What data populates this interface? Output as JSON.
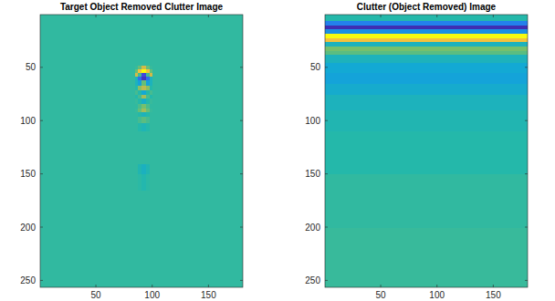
{
  "chart_data": [
    {
      "type": "heatmap",
      "title": "Target Object Removed Clutter Image",
      "xlim": [
        0.5,
        180.5
      ],
      "ylim": [
        0.5,
        256.5
      ],
      "xticks": [
        50,
        100,
        150
      ],
      "yticks": [
        50,
        100,
        150,
        200,
        250
      ],
      "clim": [
        0,
        1
      ],
      "x_edges": [
        0.5,
        84.5,
        87.5,
        90.5,
        94.5,
        97.5,
        100.5,
        180.5
      ],
      "y_edges": [
        0.5,
        48.5,
        51.5,
        55.5,
        58.5,
        62.5,
        67.5,
        71.5,
        75.5,
        79.5,
        84.5,
        88.5,
        92.5,
        96.5,
        102.5,
        110.5,
        140.5,
        150.5,
        165.5,
        256.5
      ],
      "values": [
        [
          0.52,
          0.52,
          0.52,
          0.52,
          0.52,
          0.52,
          0.52
        ],
        [
          0.52,
          0.53,
          0.6,
          0.75,
          0.6,
          0.53,
          0.52
        ],
        [
          0.52,
          0.6,
          0.85,
          1.0,
          0.85,
          0.6,
          0.52
        ],
        [
          0.52,
          0.75,
          0.55,
          0.1,
          0.55,
          0.75,
          0.52
        ],
        [
          0.52,
          0.45,
          0.2,
          0.05,
          0.2,
          0.45,
          0.52
        ],
        [
          0.52,
          0.45,
          0.35,
          0.6,
          0.35,
          0.45,
          0.52
        ],
        [
          0.52,
          0.5,
          0.65,
          0.72,
          0.65,
          0.5,
          0.52
        ],
        [
          0.52,
          0.55,
          0.5,
          0.38,
          0.5,
          0.55,
          0.52
        ],
        [
          0.52,
          0.5,
          0.55,
          0.68,
          0.55,
          0.5,
          0.52
        ],
        [
          0.52,
          0.53,
          0.5,
          0.42,
          0.5,
          0.53,
          0.52
        ],
        [
          0.52,
          0.52,
          0.56,
          0.62,
          0.56,
          0.52,
          0.52
        ],
        [
          0.52,
          0.53,
          0.6,
          0.68,
          0.6,
          0.53,
          0.52
        ],
        [
          0.52,
          0.52,
          0.5,
          0.45,
          0.5,
          0.52,
          0.52
        ],
        [
          0.52,
          0.52,
          0.55,
          0.58,
          0.55,
          0.52,
          0.52
        ],
        [
          0.52,
          0.52,
          0.5,
          0.47,
          0.5,
          0.52,
          0.52
        ],
        [
          0.52,
          0.52,
          0.52,
          0.52,
          0.52,
          0.52,
          0.52
        ],
        [
          0.52,
          0.52,
          0.48,
          0.44,
          0.48,
          0.52,
          0.52
        ],
        [
          0.52,
          0.52,
          0.51,
          0.49,
          0.51,
          0.52,
          0.52
        ],
        [
          0.52,
          0.52,
          0.52,
          0.52,
          0.52,
          0.52,
          0.52
        ]
      ]
    },
    {
      "type": "heatmap",
      "title": "Clutter (Object Removed) Image",
      "xlim": [
        0.5,
        180.5
      ],
      "ylim": [
        0.5,
        256.5
      ],
      "xticks": [
        50,
        100,
        150
      ],
      "yticks": [
        50,
        100,
        150,
        200,
        250
      ],
      "clim": [
        0,
        1
      ],
      "x_edges": [
        0.5,
        180.5
      ],
      "y_edges": [
        0.5,
        6.5,
        10.5,
        14.5,
        18.5,
        22.5,
        26.5,
        30.5,
        34.5,
        38.5,
        45.5,
        55.5,
        65.5,
        75.5,
        90.5,
        110.5,
        150.5,
        200.5,
        256.5
      ],
      "values": [
        [
          0.5
        ],
        [
          0.25
        ],
        [
          0.02
        ],
        [
          0.3
        ],
        [
          1.0
        ],
        [
          0.85
        ],
        [
          0.45
        ],
        [
          0.62
        ],
        [
          0.58
        ],
        [
          0.45
        ],
        [
          0.38
        ],
        [
          0.36
        ],
        [
          0.4
        ],
        [
          0.45
        ],
        [
          0.48
        ],
        [
          0.5
        ],
        [
          0.52
        ],
        [
          0.53
        ]
      ]
    }
  ]
}
